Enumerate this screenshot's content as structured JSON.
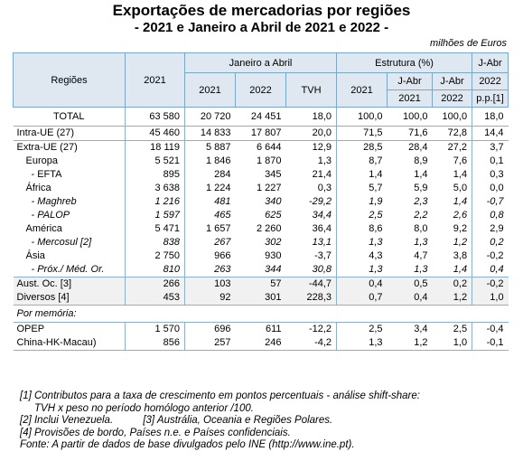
{
  "title": "Exportações de mercadorias por regiões",
  "subtitle": "- 2021 e Janeiro a Abril de 2021 e 2022 -",
  "units": "milhões de Euros",
  "headers": {
    "regions": "Regiões",
    "year2021": "2021",
    "jan_abr": "Janeiro a Abril",
    "estrutura": "Estrutura (%)",
    "j_abr": "J-Abr",
    "sub_2021": "2021",
    "sub_2022": "2022",
    "tvh": "TVH",
    "est_2021": "2021",
    "est_jabr_l1": "J-Abr",
    "est_jabr_2021": "2021",
    "est_jabr_2022": "2022",
    "pp_2022": "2022",
    "pp": "p.p.[1]"
  },
  "rows": [
    {
      "label": "TOTAL",
      "v": [
        "63 580",
        "20 720",
        "24 451",
        "18,0",
        "100,0",
        "100,0",
        "100,0",
        "18,0"
      ]
    },
    {
      "label": "Intra-UE (27)",
      "v": [
        "45 460",
        "14 833",
        "17 807",
        "20,0",
        "71,5",
        "71,6",
        "72,8",
        "14,4"
      ]
    },
    {
      "label": "Extra-UE (27)",
      "v": [
        "18 119",
        "5 887",
        "6 644",
        "12,9",
        "28,5",
        "28,4",
        "27,2",
        "3,7"
      ]
    },
    {
      "label": "Europa",
      "v": [
        "5 521",
        "1 846",
        "1 870",
        "1,3",
        "8,7",
        "8,9",
        "7,6",
        "0,1"
      ]
    },
    {
      "label": "- EFTA",
      "v": [
        "895",
        "284",
        "345",
        "21,4",
        "1,4",
        "1,4",
        "1,4",
        "0,3"
      ]
    },
    {
      "label": "África",
      "v": [
        "3 638",
        "1 224",
        "1 227",
        "0,3",
        "5,7",
        "5,9",
        "5,0",
        "0,0"
      ]
    },
    {
      "label": "- Maghreb",
      "v": [
        "1 216",
        "481",
        "340",
        "-29,2",
        "1,9",
        "2,3",
        "1,4",
        "-0,7"
      ]
    },
    {
      "label": "- PALOP",
      "v": [
        "1 597",
        "465",
        "625",
        "34,4",
        "2,5",
        "2,2",
        "2,6",
        "0,8"
      ]
    },
    {
      "label": "América",
      "v": [
        "5 471",
        "1 657",
        "2 260",
        "36,4",
        "8,6",
        "8,0",
        "9,2",
        "2,9"
      ]
    },
    {
      "label": "- Mercosul [2]",
      "v": [
        "838",
        "267",
        "302",
        "13,1",
        "1,3",
        "1,3",
        "1,2",
        "0,2"
      ]
    },
    {
      "label": "Ásia",
      "v": [
        "2 750",
        "966",
        "930",
        "-3,7",
        "4,3",
        "4,7",
        "3,8",
        "-0,2"
      ]
    },
    {
      "label": "- Próx./ Méd. Or.",
      "v": [
        "810",
        "263",
        "344",
        "30,8",
        "1,3",
        "1,3",
        "1,4",
        "0,4"
      ]
    },
    {
      "label": "Aust. Oc. [3]",
      "v": [
        "266",
        "103",
        "57",
        "-44,7",
        "0,4",
        "0,5",
        "0,2",
        "-0,2"
      ]
    },
    {
      "label": "Diversos [4]",
      "v": [
        "453",
        "92",
        "301",
        "228,3",
        "0,7",
        "0,4",
        "1,2",
        "1,0"
      ]
    }
  ],
  "memo_label": "Por memória:",
  "memo_rows": [
    {
      "label": "OPEP",
      "v": [
        "1 570",
        "696",
        "611",
        "-12,2",
        "2,5",
        "3,4",
        "2,5",
        "-0,4"
      ]
    },
    {
      "label": "China-HK-Macau)",
      "v": [
        "856",
        "257",
        "246",
        "-4,2",
        "1,3",
        "1,2",
        "1,0",
        "-0,1"
      ]
    }
  ],
  "notes": [
    "[1] Contributos para a taxa de crescimento em pontos percentuais - análise shift-share:",
    "TVH x peso no período homólogo anterior /100.",
    "[2] Inclui Venezuela.",
    "[3] Austrália, Oceania e Regiões Polares.",
    "[4] Provisões de bordo, Países n.e. e Países confidenciais.",
    "Fonte: A partir de dados de base divulgados pelo INE (http://www.ine.pt)."
  ]
}
